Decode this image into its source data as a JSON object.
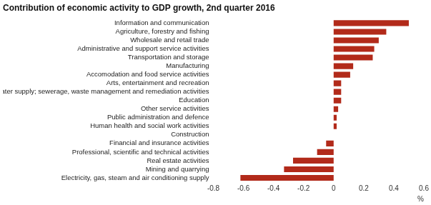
{
  "chart_data": {
    "type": "bar",
    "orientation": "horizontal",
    "title": "Contribution of economic activity to GDP growth, 2nd quarter 2016",
    "xlabel": "%",
    "categories": [
      "Information and communication",
      "Agriculture, forestry and fishing",
      "Wholesale and retail trade",
      "Administrative and support service activities",
      "Transportation and storage",
      "Manufacturing",
      "Accomodation and food service activities",
      "Arts, entertainment and recreation",
      "Water supply; sewerage, waste management and remediation activities",
      "Education",
      "Other service activities",
      "Public administration and defence",
      "Human health and social work activities",
      "Construction",
      "Financial and insurance activities",
      "Professional, scientific and technical activities",
      "Real estate activities",
      "Mining and quarrying",
      "Electricity, gas, steam and air conditioning supply"
    ],
    "values": [
      0.5,
      0.35,
      0.3,
      0.27,
      0.26,
      0.13,
      0.11,
      0.05,
      0.05,
      0.05,
      0.03,
      0.02,
      0.02,
      0,
      -0.05,
      -0.11,
      -0.27,
      -0.33,
      -0.62
    ],
    "color": "#b22a1a",
    "xlim": [
      -0.8,
      0.6
    ],
    "xticks": [
      -0.8,
      -0.6,
      -0.4,
      -0.2,
      0,
      0.2,
      0.4,
      0.6
    ],
    "grid": false
  }
}
